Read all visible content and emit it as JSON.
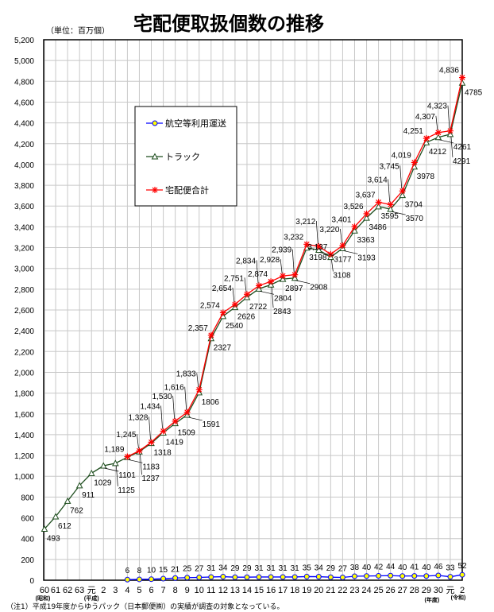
{
  "chart_data": {
    "type": "line",
    "title": "宅配便取扱個数の推移",
    "unit_label": "（単位：百万個）",
    "ylim": [
      0,
      5200
    ],
    "ytick_step": 200,
    "grid": true,
    "legend_placement": "upper-left",
    "categories": [
      "60",
      "61",
      "62",
      "63",
      "元",
      "2",
      "3",
      "4",
      "5",
      "6",
      "7",
      "8",
      "9",
      "10",
      "11",
      "12",
      "13",
      "14",
      "15",
      "16",
      "17",
      "18",
      "19",
      "20",
      "21",
      "22",
      "23",
      "24",
      "25",
      "26",
      "27",
      "28",
      "29",
      "30",
      "元",
      "2"
    ],
    "era_labels": {
      "showa": "(昭和)",
      "heisei": "(平成)",
      "nendo": "(年度)",
      "reiwa": "(令和)"
    },
    "series": [
      {
        "name": "航空等利用運送",
        "color": "#0000ff",
        "marker": "circle",
        "values": [
          null,
          null,
          null,
          null,
          null,
          null,
          null,
          6,
          8,
          10,
          15,
          21,
          25,
          27,
          31,
          34,
          29,
          29,
          31,
          31,
          31,
          31,
          35,
          34,
          29,
          27,
          38,
          40,
          42,
          44,
          40,
          41,
          40,
          46,
          33,
          52
        ]
      },
      {
        "name": "トラック",
        "color": "#1e4d1e",
        "marker": "triangle",
        "values": [
          493,
          612,
          762,
          911,
          1029,
          1101,
          1125,
          1183,
          1237,
          1318,
          1419,
          1509,
          1591,
          1806,
          2327,
          2540,
          2626,
          2722,
          2804,
          2843,
          2897,
          2908,
          3198,
          3177,
          3108,
          3193,
          3363,
          3486,
          3595,
          3570,
          3704,
          3978,
          4212,
          4261,
          4291,
          4785
        ]
      },
      {
        "name": "宅配便合計",
        "color": "#ff0000",
        "marker": "asterisk",
        "values": [
          null,
          null,
          null,
          null,
          null,
          null,
          null,
          1189,
          1245,
          1328,
          1434,
          1530,
          1616,
          1833,
          2357,
          2574,
          2654,
          2751,
          2834,
          2874,
          2928,
          2939,
          3232,
          3212,
          3137,
          3220,
          3401,
          3526,
          3637,
          3614,
          3745,
          4019,
          4251,
          4307,
          4323,
          4836
        ]
      }
    ]
  },
  "footnote": "（注1）平成19年度からゆうパック（日本郵便㈱）の実績が調査の対象となっている。"
}
